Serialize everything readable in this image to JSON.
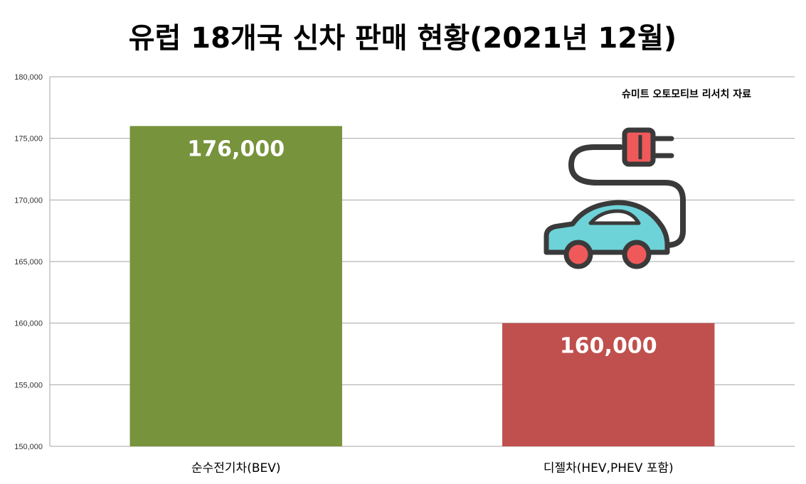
{
  "chart_data": {
    "type": "bar",
    "title": "유럽 18개국 신차 판매 현황(2021년 12월)",
    "annotation": "슈미트 오토모티브 리서치 자료",
    "categories": [
      "순수전기차(BEV)",
      "디젤차(HEV,PHEV 포함)"
    ],
    "values": [
      176000,
      160000
    ],
    "data_labels": [
      "176,000",
      "160,000"
    ],
    "bar_colors": [
      "#77933C",
      "#C0504D"
    ],
    "ylim": [
      150000,
      180000
    ],
    "yticks": [
      150000,
      155000,
      160000,
      165000,
      170000,
      175000,
      180000
    ],
    "ytick_labels": [
      "150,000",
      "155,000",
      "160,000",
      "165,000",
      "170,000",
      "175,000",
      "180,000"
    ],
    "grid": true,
    "xlabel": "",
    "ylabel": ""
  },
  "illustration": {
    "icon": "electric-car-with-plug-icon",
    "colors": {
      "body": "#6ED3D8",
      "wheels": "#F0595A",
      "outline": "#3A3A3A",
      "plug": "#F0595A"
    }
  }
}
